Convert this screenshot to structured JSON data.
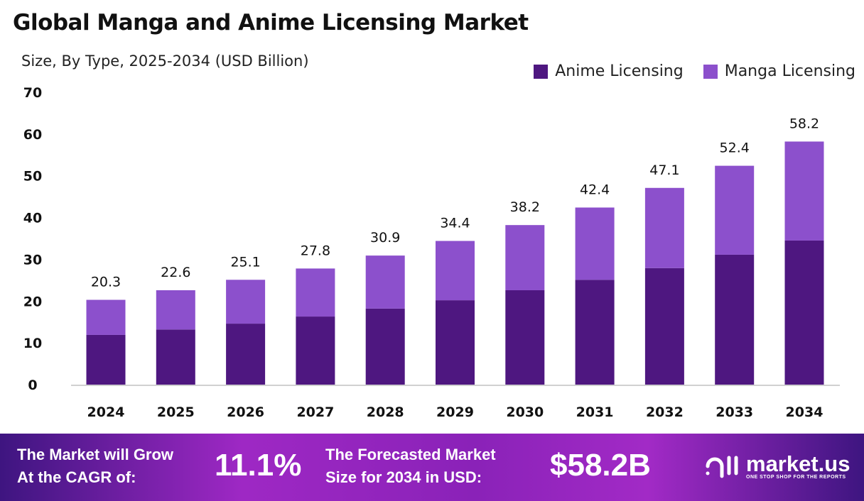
{
  "chart_data": {
    "type": "bar",
    "stacked": true,
    "title": "Global Manga and Anime Licensing Market",
    "subtitle": "Size, By Type, 2025-2034 (USD Billion)",
    "categories": [
      "2024",
      "2025",
      "2026",
      "2027",
      "2028",
      "2029",
      "2030",
      "2031",
      "2032",
      "2033",
      "2034"
    ],
    "series": [
      {
        "name": "Anime Licensing",
        "color": "#4e1780",
        "values": [
          11.9,
          13.2,
          14.6,
          16.3,
          18.2,
          20.2,
          22.6,
          25.1,
          27.9,
          31.1,
          34.5
        ]
      },
      {
        "name": "Manga Licensing",
        "color": "#8c50cc",
        "values": [
          8.4,
          9.4,
          10.5,
          11.5,
          12.7,
          14.2,
          15.6,
          17.3,
          19.2,
          21.3,
          23.7
        ]
      }
    ],
    "totals": [
      "20.3",
      "22.6",
      "25.1",
      "27.8",
      "30.9",
      "34.4",
      "38.2",
      "42.4",
      "47.1",
      "52.4",
      "58.2"
    ],
    "ylim": [
      0,
      70
    ],
    "yticks": [
      "0",
      "10",
      "20",
      "30",
      "40",
      "50",
      "60",
      "70"
    ],
    "grid": false,
    "legend": "top-right"
  },
  "banner": {
    "cagr_label_1": "The Market will Grow",
    "cagr_label_2": "At the CAGR of:",
    "cagr_value": "11.1%",
    "forecast_label_1": "The Forecasted Market",
    "forecast_label_2": "Size for 2034 in USD:",
    "forecast_value": "$58.2B",
    "logo_name": "market.us",
    "logo_tagline": "ONE STOP SHOP FOR THE REPORTS"
  }
}
